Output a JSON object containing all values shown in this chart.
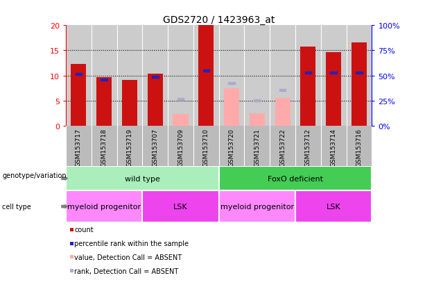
{
  "title": "GDS2720 / 1423963_at",
  "samples": [
    "GSM153717",
    "GSM153718",
    "GSM153719",
    "GSM153707",
    "GSM153709",
    "GSM153710",
    "GSM153720",
    "GSM153721",
    "GSM153722",
    "GSM153712",
    "GSM153714",
    "GSM153716"
  ],
  "count_values": [
    12.3,
    9.7,
    9.2,
    10.4,
    null,
    20.0,
    null,
    null,
    null,
    15.7,
    14.7,
    16.6
  ],
  "count_absent_values": [
    null,
    null,
    null,
    null,
    2.3,
    null,
    7.5,
    2.5,
    5.5,
    null,
    null,
    null
  ],
  "rank_values": [
    10.3,
    9.2,
    null,
    9.7,
    null,
    11.0,
    null,
    null,
    null,
    10.6,
    10.6,
    10.6
  ],
  "rank_absent_values": [
    null,
    null,
    null,
    null,
    5.3,
    null,
    8.5,
    5.1,
    7.1,
    null,
    null,
    null
  ],
  "ylim_left": [
    0,
    20
  ],
  "ylim_right": [
    0,
    100
  ],
  "yticks_left": [
    0,
    5,
    10,
    15,
    20
  ],
  "yticks_right": [
    0,
    25,
    50,
    75,
    100
  ],
  "ytick_labels_right": [
    "0%",
    "25%",
    "50%",
    "75%",
    "100%"
  ],
  "bar_width": 0.6,
  "bar_color_red": "#cc1111",
  "bar_color_pink": "#ffaaaa",
  "dot_color_blue": "#2222bb",
  "dot_color_lightblue": "#aaaacc",
  "plot_bg_color": "#cccccc",
  "xtick_bg_color": "#bbbbbb",
  "genotype_groups": [
    {
      "label": "wild type",
      "start": 0,
      "end": 6,
      "color": "#aaeebb"
    },
    {
      "label": "FoxO deficient",
      "start": 6,
      "end": 12,
      "color": "#44cc55"
    }
  ],
  "cell_type_groups": [
    {
      "label": "myeloid progenitor",
      "start": 0,
      "end": 3,
      "color": "#ff88ff"
    },
    {
      "label": "LSK",
      "start": 3,
      "end": 6,
      "color": "#ee44ee"
    },
    {
      "label": "myeloid progenitor",
      "start": 6,
      "end": 9,
      "color": "#ff88ff"
    },
    {
      "label": "LSK",
      "start": 9,
      "end": 12,
      "color": "#ee44ee"
    }
  ],
  "legend_items": [
    {
      "label": "count",
      "color": "#cc1111"
    },
    {
      "label": "percentile rank within the sample",
      "color": "#2222bb"
    },
    {
      "label": "value, Detection Call = ABSENT",
      "color": "#ffaaaa"
    },
    {
      "label": "rank, Detection Call = ABSENT",
      "color": "#aaaacc"
    }
  ]
}
